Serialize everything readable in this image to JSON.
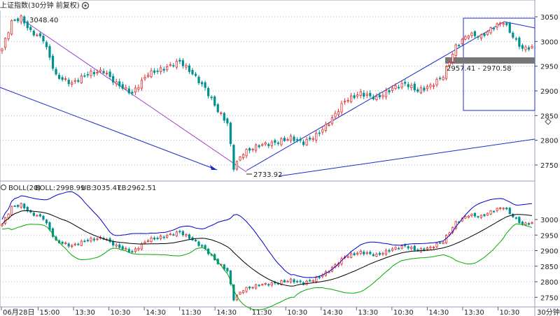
{
  "header": {
    "title": "上证指数(30分钟 前复权)",
    "gear_icon": "gear-icon",
    "period_label": "30分钟",
    "fold_icon": "diamond-icon"
  },
  "indicator": {
    "name": "BOLL(20)",
    "boll_label": "BOLL:",
    "boll_value": "2998.99",
    "ub_label": "UB:",
    "ub_value": "3035.47",
    "lb_label": "LB:",
    "lb_value": "2962.51",
    "colors": {
      "boll": "#000000",
      "ub": "#0000cc",
      "lb": "#00aa00"
    }
  },
  "annotations": {
    "high_label": "3048.40",
    "low_label": "2733.92",
    "range_label": "2957.41 - 2970.58"
  },
  "time_labels": [
    "06月28日",
    "15:00",
    "13:30",
    "10:30",
    "14:30",
    "11:30",
    "14:30",
    "11:30",
    "10:30",
    "14:30",
    "13:30",
    "10:30",
    "14:30",
    "13:30",
    "10:30"
  ],
  "colors": {
    "up": "#e03030",
    "down": "#009090",
    "bg": "#ffffff",
    "grid": "#b8b8d8",
    "trend_purple": "#9b3fd0",
    "trend_blue": "#1a2bcc"
  },
  "chart_data": [
    {
      "type": "candlestick",
      "title": "上证指数(30分钟 前复权)",
      "ylim": [
        2710,
        3070
      ],
      "yticks": [
        2750,
        2800,
        2850,
        2900,
        2950,
        3000,
        3050
      ],
      "anchors": [
        {
          "i": 0,
          "v": 2985
        },
        {
          "i": 3,
          "v": 3040
        },
        {
          "i": 6,
          "v": 3048
        },
        {
          "i": 9,
          "v": 3020
        },
        {
          "i": 13,
          "v": 3005
        },
        {
          "i": 17,
          "v": 2930
        },
        {
          "i": 22,
          "v": 2915
        },
        {
          "i": 27,
          "v": 2935
        },
        {
          "i": 32,
          "v": 2940
        },
        {
          "i": 36,
          "v": 2915
        },
        {
          "i": 41,
          "v": 2895
        },
        {
          "i": 46,
          "v": 2935
        },
        {
          "i": 51,
          "v": 2945
        },
        {
          "i": 56,
          "v": 2960
        },
        {
          "i": 60,
          "v": 2935
        },
        {
          "i": 64,
          "v": 2905
        },
        {
          "i": 68,
          "v": 2860
        },
        {
          "i": 71,
          "v": 2835
        },
        {
          "i": 73,
          "v": 2745
        },
        {
          "i": 76,
          "v": 2775
        },
        {
          "i": 81,
          "v": 2790
        },
        {
          "i": 86,
          "v": 2795
        },
        {
          "i": 91,
          "v": 2805
        },
        {
          "i": 95,
          "v": 2795
        },
        {
          "i": 99,
          "v": 2810
        },
        {
          "i": 103,
          "v": 2835
        },
        {
          "i": 108,
          "v": 2880
        },
        {
          "i": 113,
          "v": 2895
        },
        {
          "i": 118,
          "v": 2885
        },
        {
          "i": 123,
          "v": 2905
        },
        {
          "i": 127,
          "v": 2915
        },
        {
          "i": 131,
          "v": 2900
        },
        {
          "i": 135,
          "v": 2910
        },
        {
          "i": 139,
          "v": 2930
        },
        {
          "i": 143,
          "v": 2990
        },
        {
          "i": 147,
          "v": 3015
        },
        {
          "i": 151,
          "v": 3010
        },
        {
          "i": 155,
          "v": 3030
        },
        {
          "i": 158,
          "v": 3040
        },
        {
          "i": 161,
          "v": 3010
        },
        {
          "i": 164,
          "v": 2985
        },
        {
          "i": 167,
          "v": 2990
        }
      ]
    },
    {
      "type": "line",
      "title": "BOLL(20)",
      "ylim": [
        2710,
        3070
      ],
      "yticks": [
        2750,
        2800,
        2850,
        2900,
        2950,
        3000
      ],
      "series": [
        {
          "name": "BOLL"
        },
        {
          "name": "UB"
        },
        {
          "name": "LB"
        }
      ]
    }
  ]
}
